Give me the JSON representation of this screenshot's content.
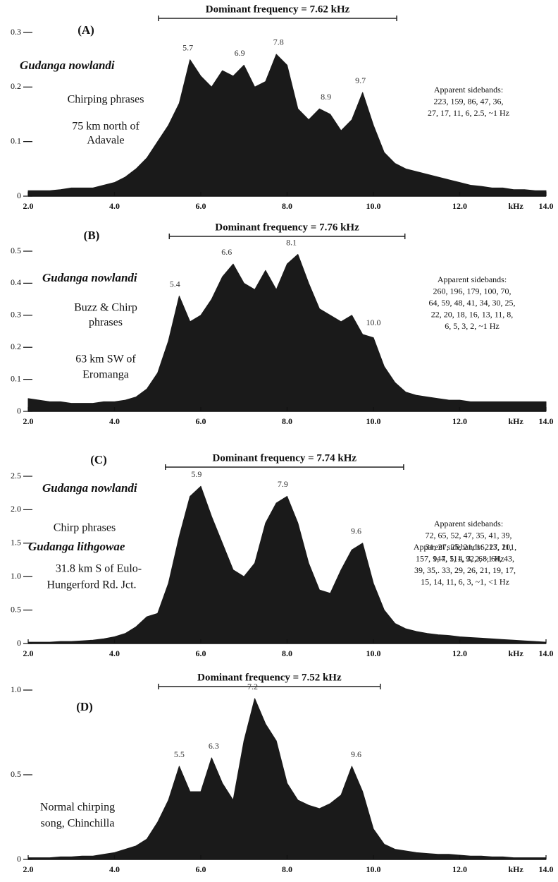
{
  "chart_data": [
    {
      "type": "area",
      "panel": "(A)",
      "title": "Dominant frequency = 7.62 kHz",
      "bracket": [
        5.02,
        10.54
      ],
      "species": "Gudanga nowlandi",
      "notes": [
        "Chirping phrases",
        "75 km north of",
        "Adavale"
      ],
      "sidebands": [
        "Apparent sidebands:",
        "223, 159, 86, 47, 36,",
        "27, 17, 11, 6, 2.5, ~1 Hz"
      ],
      "peak_labels": [
        5.7,
        6.9,
        7.8,
        8.9,
        9.7
      ],
      "color": "#1a1a1a",
      "x_label": "kHz",
      "x": [
        2,
        2.25,
        2.5,
        2.75,
        3,
        3.25,
        3.5,
        3.75,
        4,
        4.25,
        4.5,
        4.75,
        5,
        5.25,
        5.5,
        5.75,
        6,
        6.25,
        6.5,
        6.75,
        7,
        7.25,
        7.5,
        7.75,
        8,
        8.25,
        8.5,
        8.75,
        9,
        9.25,
        9.5,
        9.75,
        10,
        10.25,
        10.5,
        10.75,
        11,
        11.25,
        11.5,
        11.75,
        12,
        12.25,
        12.5,
        12.75,
        13,
        13.25,
        13.5,
        13.75,
        14
      ],
      "values": [
        0.01,
        0.01,
        0.01,
        0.012,
        0.015,
        0.015,
        0.015,
        0.02,
        0.025,
        0.035,
        0.05,
        0.07,
        0.1,
        0.13,
        0.17,
        0.25,
        0.22,
        0.2,
        0.23,
        0.22,
        0.24,
        0.2,
        0.21,
        0.26,
        0.24,
        0.16,
        0.14,
        0.16,
        0.15,
        0.12,
        0.14,
        0.19,
        0.13,
        0.08,
        0.06,
        0.05,
        0.045,
        0.04,
        0.035,
        0.03,
        0.025,
        0.02,
        0.018,
        0.015,
        0.015,
        0.012,
        0.012,
        0.01,
        0.01
      ],
      "xlim": [
        2,
        14
      ],
      "xticks": [
        {
          "value": 2,
          "label": "2.0"
        },
        {
          "value": 4,
          "label": "4.0"
        },
        {
          "value": 6,
          "label": "6.0"
        },
        {
          "value": 8,
          "label": "8.0"
        },
        {
          "value": 10,
          "label": "10.0"
        },
        {
          "value": 12,
          "label": "12.0"
        },
        {
          "value": 14,
          "label": "14.0"
        }
      ],
      "ylim": [
        0,
        0.3
      ],
      "yticks": [
        0,
        0.1,
        0.2,
        0.3
      ]
    },
    {
      "type": "area",
      "panel": "(B)",
      "title": "Dominant frequency = 7.76 kHz",
      "bracket": [
        5.27,
        10.73
      ],
      "species": "Gudanga nowlandi",
      "notes": [
        "Buzz & Chirp",
        "phrases",
        "63 km SW of",
        "Eromanga"
      ],
      "sidebands": [
        "Apparent sidebands:",
        "260, 196, 179, 100, 70,",
        "64, 59, 48, 41, 34, 30, 25,",
        "22, 20, 18, 16, 13, 11, 8,",
        "6, 5, 3, 2, ~1 Hz"
      ],
      "peak_labels": [
        5.4,
        6.6,
        8.1,
        {
          "value": 10,
          "label": "10.0"
        }
      ],
      "color": "#1a1a1a",
      "x_label": "kHz",
      "x": [
        2,
        2.25,
        2.5,
        2.75,
        3,
        3.25,
        3.5,
        3.75,
        4,
        4.25,
        4.5,
        4.75,
        5,
        5.25,
        5.5,
        5.75,
        6,
        6.25,
        6.5,
        6.75,
        7,
        7.25,
        7.5,
        7.75,
        8,
        8.25,
        8.5,
        8.75,
        9,
        9.25,
        9.5,
        9.75,
        10,
        10.25,
        10.5,
        10.75,
        11,
        11.25,
        11.5,
        11.75,
        12,
        12.25,
        12.5,
        12.75,
        13,
        13.25,
        13.5,
        13.75,
        14
      ],
      "values": [
        0.04,
        0.035,
        0.03,
        0.03,
        0.025,
        0.025,
        0.025,
        0.03,
        0.03,
        0.035,
        0.045,
        0.07,
        0.12,
        0.22,
        0.36,
        0.28,
        0.3,
        0.35,
        0.42,
        0.46,
        0.4,
        0.38,
        0.44,
        0.38,
        0.46,
        0.49,
        0.4,
        0.32,
        0.3,
        0.28,
        0.3,
        0.24,
        0.23,
        0.14,
        0.09,
        0.06,
        0.05,
        0.045,
        0.04,
        0.035,
        0.035,
        0.03,
        0.03,
        0.03,
        0.03,
        0.03,
        0.03,
        0.03,
        0.03
      ],
      "xlim": [
        2,
        14
      ],
      "xticks": [
        {
          "value": 2,
          "label": "2.0"
        },
        {
          "value": 4,
          "label": "4.0"
        },
        {
          "value": 6,
          "label": "6.0"
        },
        {
          "value": 8,
          "label": "8.0"
        },
        {
          "value": 10,
          "label": "10.0"
        },
        {
          "value": 12,
          "label": "12.0"
        },
        {
          "value": 14,
          "label": "14.0"
        }
      ],
      "ylim": [
        0,
        0.5
      ],
      "yticks": [
        0,
        0.1,
        0.2,
        0.3,
        0.4,
        0.5
      ]
    },
    {
      "type": "area",
      "panel": "(C)",
      "title": "Dominant frequency = 7.74 kHz",
      "bracket": [
        5.18,
        10.7
      ],
      "species": "Gudanga nowlandi",
      "notes": [
        "Chirp phrases",
        "31.8 km S of Eulo-",
        "Hungerford Rd. Jct."
      ],
      "sidebands": [
        "Apparent sidebands:",
        "72, 65, 52, 47, 35, 41, 39,",
        "31, 27, 25, 21, 16, 13, 11,",
        "9, 7, 5, 4, 3, 2, ~1 Hz"
      ],
      "peak_labels": [
        5.9,
        7.9,
        9.6
      ],
      "color": "#1a1a1a",
      "x_label": "kHz",
      "x": [
        2,
        2.25,
        2.5,
        2.75,
        3,
        3.25,
        3.5,
        3.75,
        4,
        4.25,
        4.5,
        4.75,
        5,
        5.25,
        5.5,
        5.75,
        6,
        6.25,
        6.5,
        6.75,
        7,
        7.25,
        7.5,
        7.75,
        8,
        8.25,
        8.5,
        8.75,
        9,
        9.25,
        9.5,
        9.75,
        10,
        10.25,
        10.5,
        10.75,
        11,
        11.25,
        11.5,
        11.75,
        12,
        12.25,
        12.5,
        12.75,
        13,
        13.25,
        13.5,
        13.75,
        14
      ],
      "values": [
        0.02,
        0.02,
        0.02,
        0.03,
        0.03,
        0.04,
        0.05,
        0.07,
        0.1,
        0.15,
        0.25,
        0.4,
        0.45,
        0.9,
        1.6,
        2.2,
        2.35,
        1.9,
        1.5,
        1.1,
        1.0,
        1.2,
        1.8,
        2.1,
        2.2,
        1.8,
        1.2,
        0.8,
        0.75,
        1.1,
        1.4,
        1.5,
        0.9,
        0.5,
        0.3,
        0.22,
        0.18,
        0.15,
        0.13,
        0.12,
        0.1,
        0.09,
        0.08,
        0.07,
        0.06,
        0.05,
        0.04,
        0.03,
        0.02
      ],
      "xlim": [
        2,
        14
      ],
      "xticks": [
        {
          "value": 2,
          "label": "2.0"
        },
        {
          "value": 4,
          "label": "4.0"
        },
        {
          "value": 6,
          "label": "6.0"
        },
        {
          "value": 8,
          "label": "8.0"
        },
        {
          "value": 10,
          "label": "10.0"
        },
        {
          "value": 12,
          "label": "12.0"
        },
        {
          "value": 14,
          "label": "14.0"
        }
      ],
      "ylim": [
        0,
        2.5
      ],
      "yticks": [
        0,
        0.5,
        {
          "value": 1,
          "label": "1.0"
        },
        1.5,
        {
          "value": 2,
          "label": "2.0"
        },
        2.5
      ]
    },
    {
      "type": "area",
      "panel": "(D)",
      "title": "Dominant frequency = 7.52 kHz",
      "bracket": [
        5.02,
        10.16
      ],
      "species": "Gudanga lithgowae",
      "notes": [
        "Normal chirping",
        "song, Chinchilla"
      ],
      "sidebands": [
        "Apparent sidebands: 227, 201,",
        "157, 144, 111, 92, 68, 64, 43,",
        "39, 35,. 33, 29, 26, 21, 19, 17,",
        "15, 14, 11, 6, 3, ~1, <1 Hz"
      ],
      "peak_labels": [
        5.5,
        6.3,
        7.2,
        9.6
      ],
      "color": "#1a1a1a",
      "x_label": "kHz",
      "x": [
        2,
        2.25,
        2.5,
        2.75,
        3,
        3.25,
        3.5,
        3.75,
        4,
        4.25,
        4.5,
        4.75,
        5,
        5.25,
        5.5,
        5.75,
        6,
        6.25,
        6.5,
        6.75,
        7,
        7.25,
        7.5,
        7.75,
        8,
        8.25,
        8.5,
        8.75,
        9,
        9.25,
        9.5,
        9.75,
        10,
        10.25,
        10.5,
        10.75,
        11,
        11.25,
        11.5,
        11.75,
        12,
        12.25,
        12.5,
        12.75,
        13,
        13.25,
        13.5,
        13.75,
        14
      ],
      "values": [
        0.01,
        0.01,
        0.01,
        0.015,
        0.015,
        0.02,
        0.02,
        0.03,
        0.04,
        0.06,
        0.08,
        0.12,
        0.22,
        0.35,
        0.55,
        0.4,
        0.4,
        0.6,
        0.45,
        0.35,
        0.7,
        0.95,
        0.8,
        0.7,
        0.45,
        0.35,
        0.32,
        0.3,
        0.33,
        0.38,
        0.55,
        0.4,
        0.18,
        0.09,
        0.06,
        0.05,
        0.04,
        0.035,
        0.03,
        0.03,
        0.025,
        0.02,
        0.02,
        0.015,
        0.015,
        0.01,
        0.01,
        0.01,
        0.01
      ],
      "xlim": [
        2,
        14
      ],
      "xticks": [
        {
          "value": 2,
          "label": "2.0"
        },
        {
          "value": 4,
          "label": "4.0"
        },
        {
          "value": 6,
          "label": "6.0"
        },
        {
          "value": 8,
          "label": "8.0"
        },
        {
          "value": 10,
          "label": "10.0"
        },
        {
          "value": 12,
          "label": "12.0"
        },
        {
          "value": 14,
          "label": "14.0"
        }
      ],
      "ylim": [
        0,
        1
      ],
      "yticks": [
        0,
        0.5,
        {
          "value": 1,
          "label": "1.0"
        }
      ]
    }
  ]
}
